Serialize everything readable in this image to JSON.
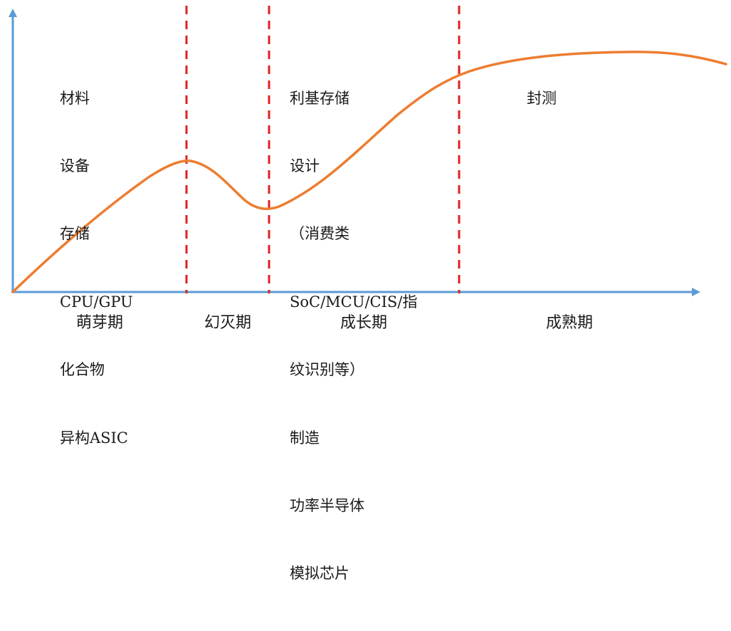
{
  "phases": [
    "萌芽期",
    "幻灭期",
    "成长期",
    "成熟期"
  ],
  "phase_items": {
    "germination": [
      "材料",
      "设备",
      "存储",
      "CPU/GPU",
      "化合物",
      "异构ASIC"
    ],
    "growth": [
      "利基存储",
      "设计",
      "（消费类",
      "SoC/MCU/CIS/指",
      "纹识别等）",
      "制造",
      "功率半导体",
      "模拟芯片"
    ],
    "maturity": [
      "封测"
    ]
  },
  "colors": {
    "axis": "#5b9bd5",
    "curve": "#ed7d31",
    "divider": "#e02020",
    "text": "#1a1a1a"
  }
}
